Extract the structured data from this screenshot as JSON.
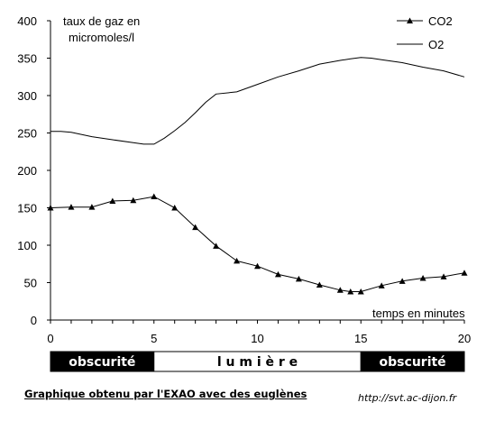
{
  "chart_data": {
    "type": "line",
    "y_axis_label_lines": [
      "taux de gaz en",
      "micromoles/l"
    ],
    "x_axis_label": "temps en minutes",
    "xlim": [
      0,
      20
    ],
    "ylim": [
      0,
      400
    ],
    "x_ticks": [
      0,
      5,
      10,
      15,
      20
    ],
    "y_ticks": [
      0,
      50,
      100,
      150,
      200,
      250,
      300,
      350,
      400
    ],
    "grid": false,
    "legend_position": "top-right",
    "series": [
      {
        "name": "CO2",
        "marker": "triangle",
        "x": [
          0,
          1,
          2,
          3,
          4,
          5,
          6,
          7,
          8,
          9,
          10,
          11,
          12,
          13,
          14,
          14.5,
          15,
          16,
          17,
          18,
          19,
          20
        ],
        "values": [
          150,
          151,
          151,
          159,
          160,
          165,
          150,
          124,
          99,
          79,
          72,
          61,
          55,
          47,
          40,
          38,
          38,
          46,
          52,
          56,
          58,
          63
        ]
      },
      {
        "name": "O2",
        "marker": "none",
        "x": [
          0,
          0.5,
          1,
          2,
          3,
          4,
          4.5,
          5,
          5.5,
          6,
          6.5,
          7,
          7.5,
          8,
          9,
          10,
          11,
          12,
          13,
          14,
          14.5,
          15,
          15.5,
          16,
          17,
          18,
          19,
          20
        ],
        "values": [
          252,
          252,
          251,
          245,
          241,
          237,
          235,
          235,
          243,
          253,
          264,
          277,
          291,
          302,
          305,
          315,
          325,
          333,
          342,
          347,
          349,
          351,
          350,
          348,
          344,
          338,
          333,
          325
        ]
      }
    ],
    "bands": [
      {
        "label": "obscurité",
        "from": 0,
        "to": 5,
        "style": "dark"
      },
      {
        "label": "l u m i è r e",
        "from": 5,
        "to": 15,
        "style": "light"
      },
      {
        "label": "obscurité",
        "from": 15,
        "to": 20,
        "style": "dark"
      }
    ]
  },
  "caption": "Graphique obtenu par l'EXAO avec des euglènes",
  "source": "http://svt.ac-dijon.fr"
}
